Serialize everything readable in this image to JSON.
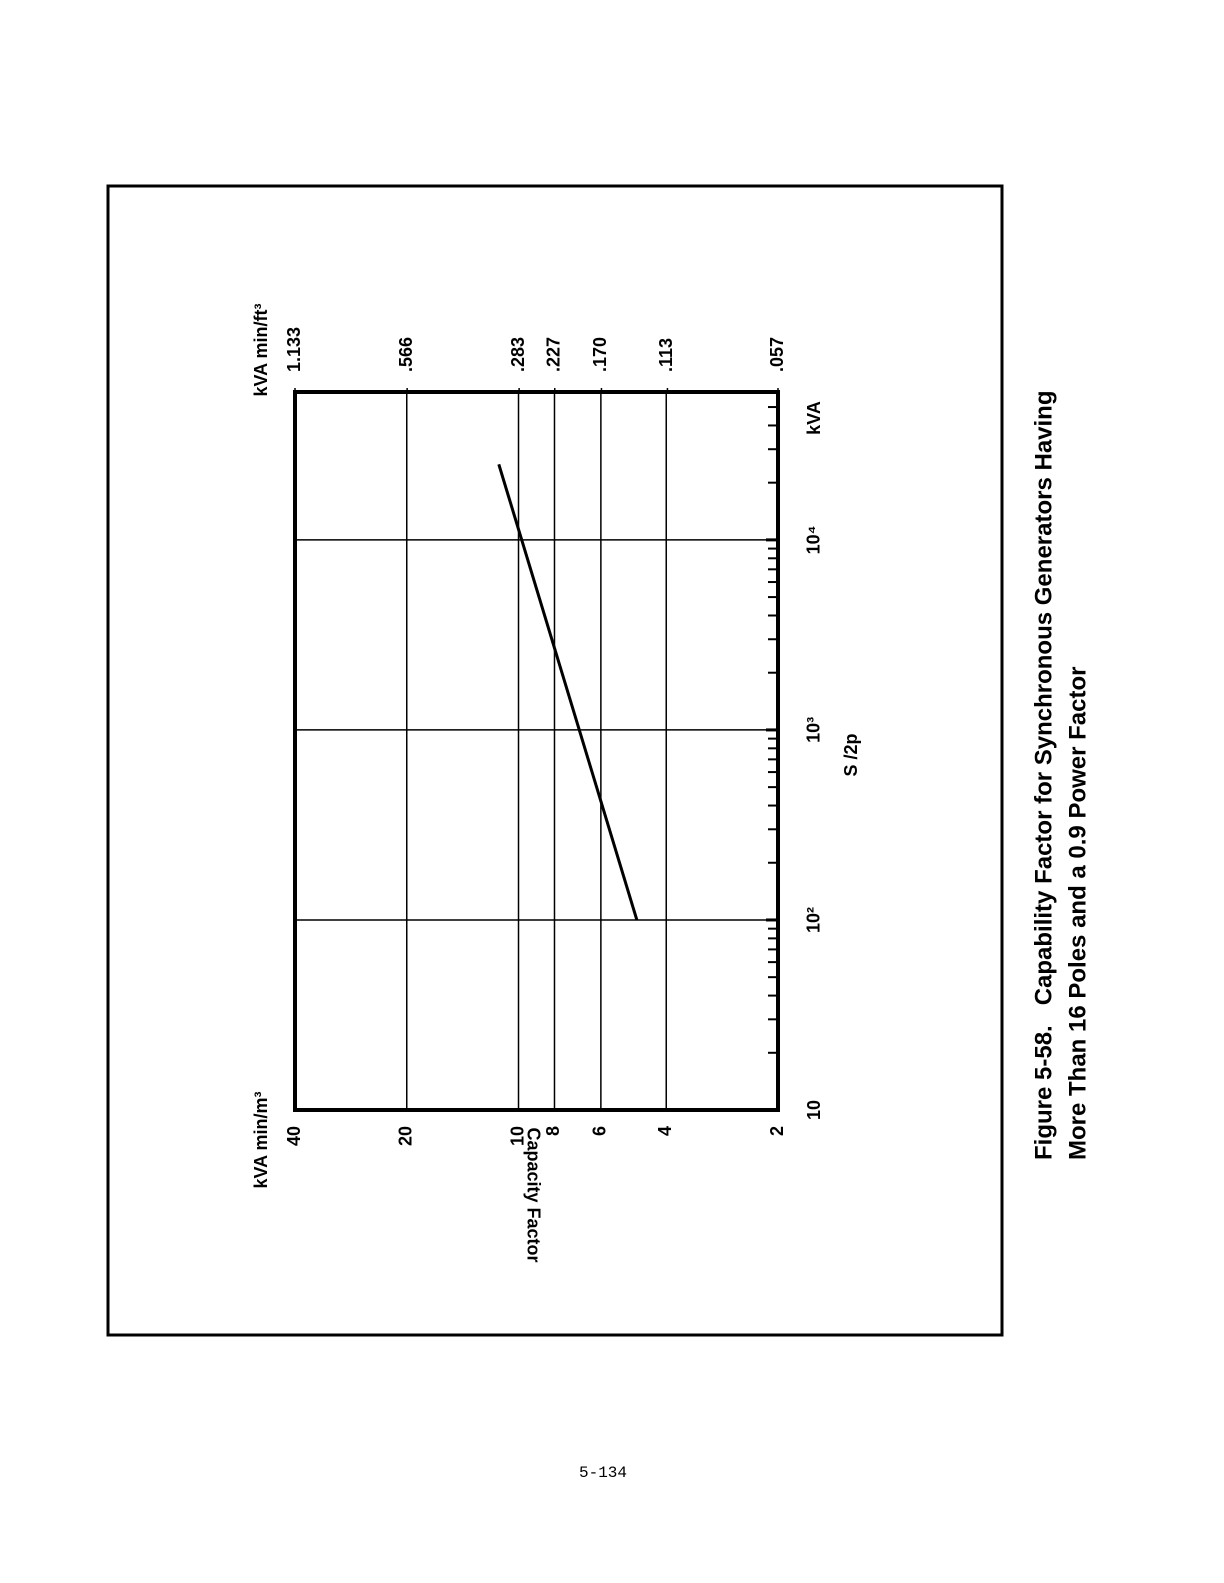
{
  "page_number": "5-134",
  "chart_data": {
    "type": "line",
    "caption": [
      "Figure 5-58.   Capability Factor for Synchronous Generators Having",
      "More Than 16 Poles and a 0.9 Power Factor"
    ],
    "x_label": "S /2p",
    "x_unit": "kVA",
    "y_label": "Capacity Factor",
    "y_unit": "kVA min/m³",
    "y2_unit": "kVA min/ft³",
    "xscale": "log",
    "yscale": "log",
    "grid": true,
    "color": "#000000",
    "x": [
      100,
      25000
    ],
    "values": [
      4.8,
      11.3
    ],
    "xlim": [
      10,
      60000
    ],
    "xticks": [
      10,
      {
        "value": 100,
        "label": "10²"
      },
      {
        "value": 1000,
        "label": "10³"
      },
      {
        "value": 10000,
        "label": "10⁴"
      }
    ],
    "xminorticks": [
      20,
      30,
      40,
      50,
      60,
      70,
      80,
      90,
      200,
      300,
      400,
      500,
      600,
      700,
      800,
      900,
      2000,
      3000,
      4000,
      5000,
      6000,
      7000,
      8000,
      9000,
      20000,
      30000,
      40000,
      50000
    ],
    "ylim": [
      2,
      40
    ],
    "yticks": [
      2,
      4,
      6,
      8,
      10,
      20,
      40
    ],
    "y2lim": [
      0.057,
      1.133
    ],
    "y2ticks": [
      {
        "value": 0.057,
        "label": ".057"
      },
      {
        "value": 0.113,
        "label": ".113"
      },
      {
        "value": 0.17,
        "label": ".170"
      },
      {
        "value": 0.227,
        "label": ".227"
      },
      {
        "value": 0.283,
        "label": ".283"
      },
      {
        "value": 0.566,
        "label": ".566"
      },
      {
        "value": 1.133,
        "label": "1.133"
      }
    ]
  }
}
